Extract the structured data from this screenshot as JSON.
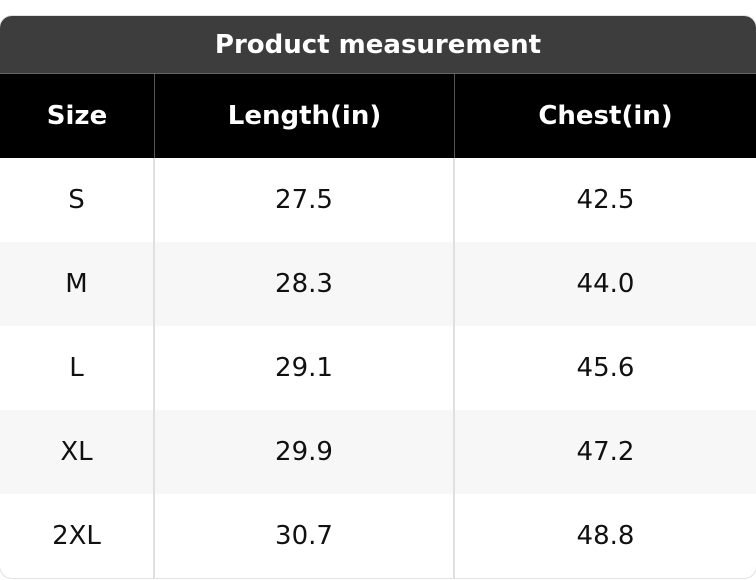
{
  "header": {
    "title": "Product measurement"
  },
  "table": {
    "columns": [
      "Size",
      "Length(in)",
      "Chest(in)"
    ],
    "rows": [
      [
        "S",
        "27.5",
        "42.5"
      ],
      [
        "M",
        "28.3",
        "44.0"
      ],
      [
        "L",
        "29.1",
        "45.6"
      ],
      [
        "XL",
        "29.9",
        "47.2"
      ],
      [
        "2XL",
        "30.7",
        "48.8"
      ]
    ]
  }
}
